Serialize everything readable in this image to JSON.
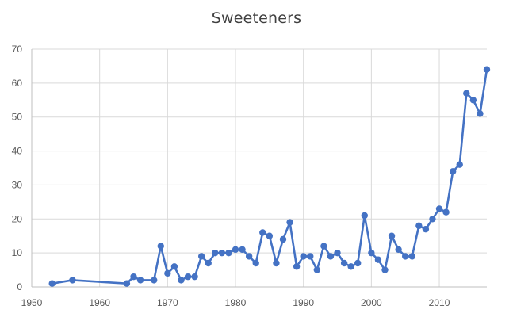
{
  "chart_data": {
    "type": "line",
    "title": "Sweeteners",
    "xlabel": "",
    "ylabel": "",
    "xlim": [
      1950,
      2017
    ],
    "ylim": [
      0,
      70
    ],
    "x_ticks": [
      1950,
      1960,
      1970,
      1980,
      1990,
      2000,
      2010
    ],
    "y_ticks": [
      0,
      10,
      20,
      30,
      40,
      50,
      60,
      70
    ],
    "grid": true,
    "legend": "none",
    "series": [
      {
        "color": "#4472c4",
        "points": [
          [
            1953,
            1
          ],
          [
            1956,
            2
          ],
          [
            1964,
            1
          ],
          [
            1965,
            3
          ],
          [
            1966,
            2
          ],
          [
            1968,
            2
          ],
          [
            1969,
            12
          ],
          [
            1970,
            4
          ],
          [
            1971,
            6
          ],
          [
            1972,
            2
          ],
          [
            1973,
            3
          ],
          [
            1974,
            3
          ],
          [
            1975,
            9
          ],
          [
            1976,
            7
          ],
          [
            1977,
            10
          ],
          [
            1978,
            10
          ],
          [
            1979,
            10
          ],
          [
            1980,
            11
          ],
          [
            1981,
            11
          ],
          [
            1982,
            9
          ],
          [
            1983,
            7
          ],
          [
            1984,
            16
          ],
          [
            1985,
            15
          ],
          [
            1986,
            7
          ],
          [
            1987,
            14
          ],
          [
            1988,
            19
          ],
          [
            1989,
            6
          ],
          [
            1990,
            9
          ],
          [
            1991,
            9
          ],
          [
            1992,
            5
          ],
          [
            1993,
            12
          ],
          [
            1994,
            9
          ],
          [
            1995,
            10
          ],
          [
            1996,
            7
          ],
          [
            1997,
            6
          ],
          [
            1998,
            7
          ],
          [
            1999,
            21
          ],
          [
            2000,
            10
          ],
          [
            2001,
            8
          ],
          [
            2002,
            5
          ],
          [
            2003,
            15
          ],
          [
            2004,
            11
          ],
          [
            2005,
            9
          ],
          [
            2006,
            9
          ],
          [
            2007,
            18
          ],
          [
            2008,
            17
          ],
          [
            2009,
            20
          ],
          [
            2010,
            23
          ],
          [
            2011,
            22
          ],
          [
            2012,
            34
          ],
          [
            2013,
            36
          ],
          [
            2014,
            57
          ],
          [
            2015,
            55
          ],
          [
            2016,
            51
          ],
          [
            2017,
            64
          ]
        ]
      }
    ]
  },
  "colors": {
    "series": "#4472c4",
    "grid": "#d9d9d9",
    "axis": "#bfbfbf",
    "text": "#595959",
    "title": "#404040"
  }
}
